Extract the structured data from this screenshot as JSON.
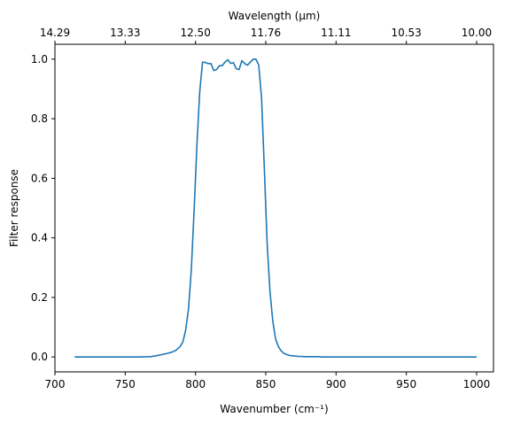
{
  "chart_data": {
    "type": "line",
    "xlabel": "Wavenumber (cm⁻¹)",
    "ylabel": "Filter response",
    "top_xlabel": "Wavelength (μm)",
    "xlim": [
      700,
      1012
    ],
    "ylim": [
      -0.05,
      1.05
    ],
    "grid": false,
    "x_ticks": [
      700,
      750,
      800,
      850,
      900,
      950,
      1000
    ],
    "x_tick_labels": [
      "700",
      "750",
      "800",
      "850",
      "900",
      "950",
      "1000"
    ],
    "y_ticks": [
      0.0,
      0.2,
      0.4,
      0.6,
      0.8,
      1.0
    ],
    "y_tick_labels": [
      "0.0",
      "0.2",
      "0.4",
      "0.6",
      "0.8",
      "1.0"
    ],
    "top_ticks_wavenumber": [
      700,
      750,
      800,
      850,
      900,
      950,
      1000
    ],
    "top_tick_labels": [
      "14.29",
      "13.33",
      "12.50",
      "11.76",
      "11.11",
      "10.53",
      "10.00"
    ],
    "series": [
      {
        "color": "#1f77b4",
        "x": [
          714,
          720,
          730,
          740,
          750,
          760,
          768,
          772,
          776,
          780,
          783,
          786,
          789,
          791,
          793,
          795,
          797,
          799,
          801,
          803,
          805,
          807,
          809,
          811,
          813,
          815,
          817,
          819,
          821,
          823,
          825,
          827,
          829,
          831,
          833,
          835,
          837,
          839,
          841,
          843,
          845,
          847,
          849,
          851,
          853,
          855,
          857,
          859,
          861,
          863,
          865,
          867,
          869,
          871,
          873,
          875,
          877,
          879,
          881,
          884,
          887,
          890,
          895,
          900,
          910,
          920,
          940,
          960,
          980,
          1000
        ],
        "y": [
          0.0,
          0.0,
          0.0,
          0.0,
          0.0,
          0.0,
          0.001,
          0.004,
          0.008,
          0.012,
          0.016,
          0.022,
          0.035,
          0.05,
          0.09,
          0.16,
          0.29,
          0.49,
          0.71,
          0.89,
          0.99,
          0.989,
          0.985,
          0.985,
          0.962,
          0.965,
          0.978,
          0.978,
          0.99,
          0.998,
          0.986,
          0.988,
          0.968,
          0.965,
          0.995,
          0.985,
          0.98,
          0.99,
          1.0,
          1.0,
          0.98,
          0.87,
          0.63,
          0.38,
          0.22,
          0.12,
          0.06,
          0.035,
          0.02,
          0.012,
          0.008,
          0.005,
          0.004,
          0.003,
          0.002,
          0.002,
          0.001,
          0.001,
          0.001,
          0.001,
          0.001,
          0.0,
          0.0,
          0.0,
          0.0,
          0.0,
          0.0,
          0.0,
          0.0,
          0.0
        ]
      }
    ]
  }
}
